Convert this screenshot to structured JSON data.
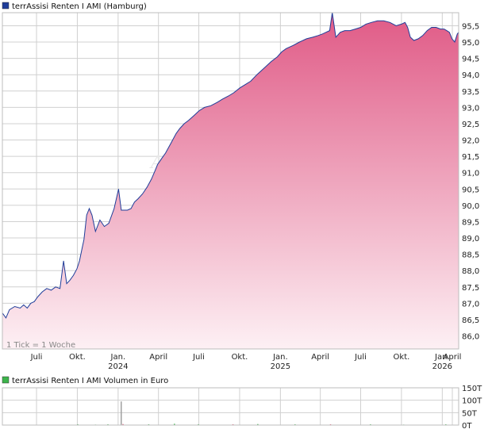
{
  "chart_data": [
    {
      "type": "area",
      "title": "terrAssisi Renten I AMI (Hamburg)",
      "legend_color": "#1f3d99",
      "line_color": "#1f3d99",
      "fill_top_color": "#e05a86",
      "fill_bottom_color": "#fdf0f4",
      "note": "1 Tick = 1 Woche",
      "watermark": "AKTIE",
      "ylim": [
        85.6,
        95.9
      ],
      "yticks": [
        "86,0",
        "86,5",
        "87,0",
        "87,5",
        "88,0",
        "88,5",
        "89,0",
        "89,5",
        "90,0",
        "90,5",
        "91,0",
        "91,5",
        "92,0",
        "92,5",
        "93,0",
        "93,5",
        "94,0",
        "94,5",
        "95,0",
        "95,5"
      ],
      "ytick_values": [
        86.0,
        86.5,
        87.0,
        87.5,
        88.0,
        88.5,
        89.0,
        89.5,
        90.0,
        90.5,
        91.0,
        91.5,
        92.0,
        92.5,
        93.0,
        93.5,
        94.0,
        94.5,
        95.0,
        95.5
      ],
      "xlim": [
        0,
        1029
      ],
      "xticks": [
        {
          "label": "Juli",
          "year": "",
          "t": 77
        },
        {
          "label": "Okt.",
          "year": "",
          "t": 169
        },
        {
          "label": "Jan.",
          "year": "2024",
          "t": 261
        },
        {
          "label": "April",
          "year": "",
          "t": 352
        },
        {
          "label": "Juli",
          "year": "",
          "t": 443
        },
        {
          "label": "Okt.",
          "year": "",
          "t": 535
        },
        {
          "label": "Jan.",
          "year": "2025",
          "t": 627
        },
        {
          "label": "April",
          "year": "",
          "t": 717
        },
        {
          "label": "Juli",
          "year": "",
          "t": 808
        },
        {
          "label": "Okt.",
          "year": "",
          "t": 900
        },
        {
          "label": "Jan.",
          "year": "2026",
          "t": 992
        },
        {
          "label": "April",
          "year": "",
          "t": 1082
        }
      ],
      "x": [
        0,
        8,
        16,
        28,
        40,
        48,
        56,
        64,
        72,
        80,
        90,
        100,
        110,
        120,
        130,
        138,
        145,
        152,
        160,
        168,
        174,
        180,
        184,
        190,
        196,
        202,
        210,
        220,
        230,
        240,
        252,
        262,
        268,
        275,
        282,
        290,
        298,
        306,
        316,
        326,
        336,
        344,
        350,
        355,
        360,
        368,
        380,
        392,
        400,
        410,
        420,
        432,
        444,
        456,
        470,
        484,
        496,
        510,
        522,
        536,
        548,
        560,
        574,
        590,
        606,
        620,
        630,
        640,
        656,
        670,
        686,
        700,
        712,
        722,
        730,
        738,
        744,
        752,
        762,
        772,
        784,
        796,
        808,
        820,
        832,
        846,
        860,
        874,
        888,
        900,
        908,
        914,
        920,
        928,
        938,
        948,
        958,
        968,
        978,
        988,
        996,
        1002,
        1008,
        1014,
        1020,
        1026,
        1029
      ],
      "values": [
        86.7,
        86.55,
        86.8,
        86.9,
        86.85,
        86.95,
        86.85,
        87.0,
        87.05,
        87.2,
        87.35,
        87.45,
        87.4,
        87.5,
        87.45,
        88.3,
        87.6,
        87.7,
        87.85,
        88.05,
        88.3,
        88.7,
        88.95,
        89.7,
        89.9,
        89.7,
        89.2,
        89.55,
        89.35,
        89.45,
        89.9,
        90.5,
        89.85,
        89.85,
        89.85,
        89.9,
        90.1,
        90.2,
        90.35,
        90.55,
        90.8,
        91.05,
        91.25,
        91.35,
        91.45,
        91.6,
        91.9,
        92.2,
        92.35,
        92.5,
        92.6,
        92.75,
        92.9,
        93.0,
        93.05,
        93.15,
        93.25,
        93.35,
        93.45,
        93.6,
        93.7,
        93.8,
        94.0,
        94.2,
        94.4,
        94.55,
        94.7,
        94.8,
        94.9,
        95.0,
        95.1,
        95.15,
        95.2,
        95.25,
        95.3,
        95.35,
        95.9,
        95.15,
        95.3,
        95.35,
        95.35,
        95.4,
        95.45,
        95.55,
        95.6,
        95.65,
        95.65,
        95.6,
        95.5,
        95.55,
        95.6,
        95.45,
        95.15,
        95.05,
        95.1,
        95.2,
        95.35,
        95.45,
        95.45,
        95.4,
        95.4,
        95.35,
        95.3,
        95.1,
        95.0,
        95.25,
        95.3
      ]
    },
    {
      "type": "bar",
      "title": "terrAssisi Renten I AMI Volumen in Euro",
      "legend_color": "#3cb44b",
      "yticks": [
        "150T",
        "100T",
        "50T",
        "0T"
      ],
      "ytick_values": [
        150,
        100,
        50,
        0
      ],
      "ylim": [
        0,
        150
      ],
      "bars": [
        {
          "t": 170,
          "value": 3,
          "color": "#3cb44b"
        },
        {
          "t": 210,
          "value": 2,
          "color": "#3cb44b"
        },
        {
          "t": 238,
          "value": 3,
          "color": "#3cb44b"
        },
        {
          "t": 268,
          "value": 95,
          "color": "#a0a0a0"
        },
        {
          "t": 272,
          "value": 4,
          "color": "#e05070"
        },
        {
          "t": 330,
          "value": 3,
          "color": "#3cb44b"
        },
        {
          "t": 388,
          "value": 5,
          "color": "#3cb44b"
        },
        {
          "t": 442,
          "value": 3,
          "color": "#3cb44b"
        },
        {
          "t": 520,
          "value": 3,
          "color": "#e05070"
        },
        {
          "t": 576,
          "value": 4,
          "color": "#3cb44b"
        },
        {
          "t": 660,
          "value": 3,
          "color": "#3cb44b"
        },
        {
          "t": 740,
          "value": 3,
          "color": "#e05070"
        },
        {
          "t": 830,
          "value": 3,
          "color": "#3cb44b"
        },
        {
          "t": 905,
          "value": 2,
          "color": "#3cb44b"
        },
        {
          "t": 1000,
          "value": 3,
          "color": "#3cb44b"
        }
      ]
    }
  ]
}
